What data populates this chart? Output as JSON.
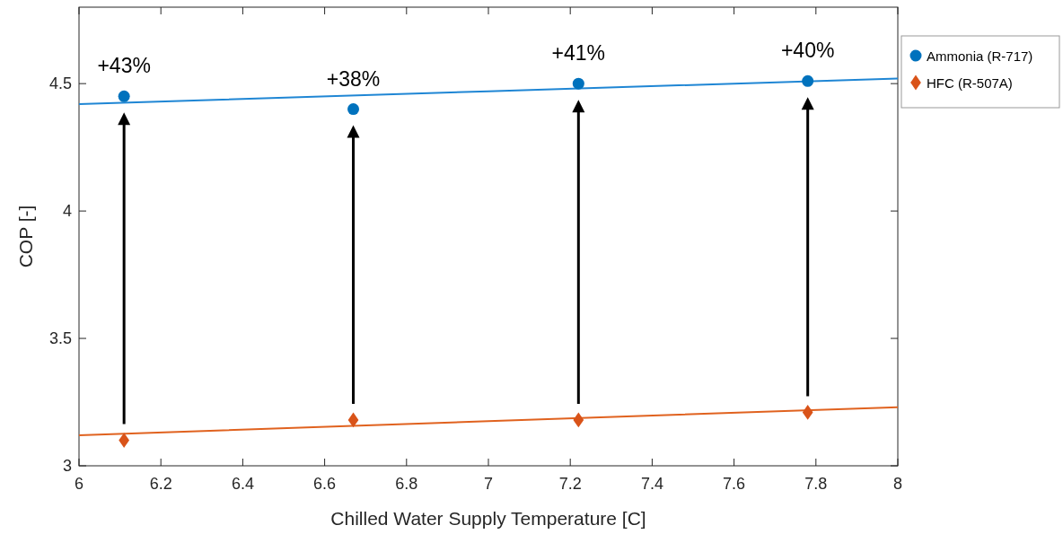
{
  "chart_data": {
    "type": "scatter",
    "xlabel": "Chilled Water Supply Temperature [C]",
    "ylabel": "COP [-]",
    "x": [
      6.11,
      6.67,
      7.22,
      7.78
    ],
    "series": [
      {
        "name": "Ammonia (R-717)",
        "color": "#0072bd",
        "marker": "circle",
        "values": [
          4.45,
          4.4,
          4.5,
          4.51
        ]
      },
      {
        "name": "HFC (R-507A)",
        "color": "#d95319",
        "marker": "diamond",
        "values": [
          3.1,
          3.18,
          3.18,
          3.21
        ]
      },
      {
        "type": "line",
        "color": "#1f86d4",
        "x": [
          6,
          7,
          8
        ],
        "values": [
          4.42,
          4.47,
          4.52
        ]
      },
      {
        "type": "line",
        "color": "#e0621f",
        "x": [
          6,
          7,
          8
        ],
        "values": [
          3.12,
          3.175,
          3.23
        ]
      }
    ],
    "annotations": [
      "+43%",
      "+38%",
      "+41%",
      "+40%"
    ],
    "xlim": [
      6,
      8
    ],
    "xticks": [
      6,
      6.2,
      6.4,
      6.6,
      6.8,
      7,
      7.2,
      7.4,
      7.6,
      7.8,
      8
    ],
    "ylim": [
      3,
      4.8
    ],
    "yticks": [
      3,
      3.5,
      4,
      4.5
    ],
    "grid": false,
    "legend": "top right"
  }
}
